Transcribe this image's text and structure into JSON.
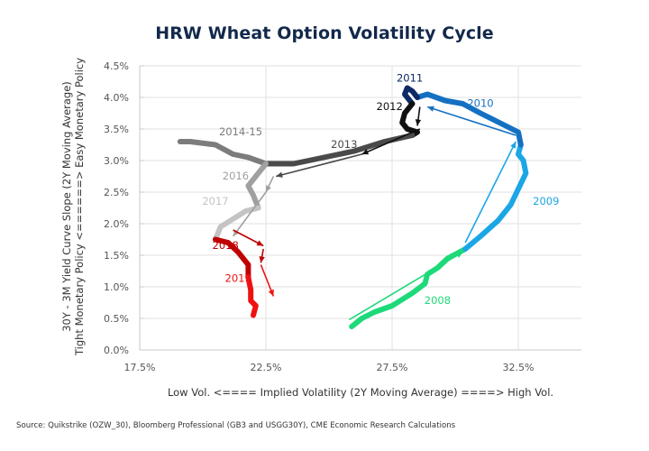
{
  "chart_data": {
    "type": "line",
    "title": "HRW Wheat Option Volatility Cycle",
    "xlabel": "Low Vol. <==== Implied Volatility (2Y Moving Average) ====> High Vol.",
    "ylabel_lines": [
      "30Y - 3M Yield Curve Slope (2Y Moving Average)",
      "Tight Monetary Policy <======> Easy Monetary Policy"
    ],
    "xlim": [
      17.5,
      35.0
    ],
    "ylim": [
      0.0,
      4.5
    ],
    "x_ticks": [
      17.5,
      22.5,
      27.5,
      32.5
    ],
    "x_tick_labels": [
      "17.5%",
      "22.5%",
      "27.5%",
      "32.5%"
    ],
    "y_ticks": [
      0.0,
      0.5,
      1.0,
      1.5,
      2.0,
      2.5,
      3.0,
      3.5,
      4.0,
      4.5
    ],
    "y_tick_labels": [
      "0.0%",
      "0.5%",
      "1.0%",
      "1.5%",
      "2.0%",
      "2.5%",
      "3.0%",
      "3.5%",
      "4.0%",
      "4.5%"
    ],
    "grid": true,
    "series": [
      {
        "name": "2008",
        "color": "#1ed97a",
        "label_at": [
          29.3,
          0.73
        ],
        "points": [
          [
            25.9,
            0.37
          ],
          [
            26.3,
            0.5
          ],
          [
            26.8,
            0.6
          ],
          [
            27.5,
            0.7
          ],
          [
            28.3,
            0.9
          ],
          [
            28.8,
            1.05
          ],
          [
            28.9,
            1.2
          ],
          [
            29.3,
            1.3
          ],
          [
            29.7,
            1.45
          ],
          [
            30.4,
            1.6
          ]
        ]
      },
      {
        "name": "2009",
        "color": "#1ba6e6",
        "label_at": [
          33.6,
          2.3
        ],
        "points": [
          [
            30.4,
            1.6
          ],
          [
            31.0,
            1.8
          ],
          [
            31.7,
            2.05
          ],
          [
            32.2,
            2.3
          ],
          [
            32.5,
            2.55
          ],
          [
            32.8,
            2.8
          ],
          [
            32.7,
            3.0
          ],
          [
            32.5,
            3.1
          ],
          [
            32.6,
            3.25
          ]
        ]
      },
      {
        "name": "2010",
        "color": "#1570c2",
        "label_at": [
          31.0,
          3.85
        ],
        "points": [
          [
            32.6,
            3.25
          ],
          [
            32.5,
            3.45
          ],
          [
            32.0,
            3.55
          ],
          [
            31.0,
            3.75
          ],
          [
            30.3,
            3.9
          ],
          [
            29.6,
            3.95
          ],
          [
            28.9,
            4.05
          ],
          [
            28.5,
            4.0
          ]
        ]
      },
      {
        "name": "2011",
        "color": "#0d2a66",
        "label_at": [
          28.2,
          4.25
        ],
        "points": [
          [
            28.5,
            4.0
          ],
          [
            28.3,
            4.1
          ],
          [
            28.1,
            4.15
          ],
          [
            28.0,
            4.05
          ],
          [
            28.3,
            3.9
          ]
        ]
      },
      {
        "name": "2012",
        "color": "#111111",
        "label_at": [
          27.4,
          3.8
        ],
        "points": [
          [
            28.3,
            3.9
          ],
          [
            28.0,
            3.75
          ],
          [
            27.9,
            3.6
          ],
          [
            28.1,
            3.5
          ],
          [
            28.5,
            3.45
          ],
          [
            28.3,
            3.4
          ]
        ]
      },
      {
        "name": "2013",
        "color": "#4a4a4a",
        "label_at": [
          25.6,
          3.2
        ],
        "points": [
          [
            28.3,
            3.4
          ],
          [
            27.2,
            3.3
          ],
          [
            26.0,
            3.15
          ],
          [
            24.8,
            3.05
          ],
          [
            23.6,
            2.95
          ],
          [
            22.5,
            2.95
          ]
        ]
      },
      {
        "name": "2014-15",
        "color": "#7c7c7c",
        "label_at": [
          21.5,
          3.4
        ],
        "points": [
          [
            22.5,
            2.95
          ],
          [
            21.8,
            3.05
          ],
          [
            21.2,
            3.1
          ],
          [
            20.5,
            3.25
          ],
          [
            19.5,
            3.3
          ],
          [
            19.1,
            3.3
          ]
        ]
      },
      {
        "name": "2016",
        "color": "#a0a0a0",
        "label_at": [
          21.3,
          2.7
        ],
        "points": [
          [
            22.5,
            2.95
          ],
          [
            22.2,
            2.8
          ],
          [
            21.8,
            2.6
          ],
          [
            22.0,
            2.45
          ],
          [
            22.2,
            2.25
          ]
        ]
      },
      {
        "name": "2017",
        "color": "#c4c4c4",
        "label_at": [
          20.5,
          2.3
        ],
        "points": [
          [
            22.2,
            2.25
          ],
          [
            21.7,
            2.2
          ],
          [
            21.1,
            2.05
          ],
          [
            20.7,
            1.95
          ],
          [
            20.5,
            1.75
          ]
        ]
      },
      {
        "name": "2018",
        "color": "#c00000",
        "label_at": [
          20.9,
          1.6
        ],
        "points": [
          [
            20.5,
            1.75
          ],
          [
            21.0,
            1.7
          ],
          [
            21.4,
            1.55
          ],
          [
            21.8,
            1.35
          ],
          [
            21.8,
            1.15
          ]
        ]
      },
      {
        "name": "2019",
        "color": "#ee1111",
        "label_at": [
          21.4,
          1.08
        ],
        "points": [
          [
            21.8,
            1.15
          ],
          [
            21.9,
            0.95
          ],
          [
            21.9,
            0.78
          ],
          [
            22.1,
            0.7
          ],
          [
            22.0,
            0.55
          ]
        ]
      }
    ],
    "arrows": [
      {
        "from": [
          25.8,
          0.48
        ],
        "to": [
          30.3,
          1.55
        ],
        "color": "#1ed97a"
      },
      {
        "from": [
          30.4,
          1.7
        ],
        "to": [
          32.4,
          3.3
        ],
        "color": "#1ba6e6"
      },
      {
        "from": [
          32.4,
          3.4
        ],
        "to": [
          28.9,
          3.85
        ],
        "color": "#1570c2"
      },
      {
        "from": [
          28.6,
          3.85
        ],
        "to": [
          28.5,
          3.55
        ],
        "color": "#111111"
      },
      {
        "from": [
          28.6,
          3.5
        ],
        "to": [
          26.3,
          3.1
        ],
        "color": "#111111"
      },
      {
        "from": [
          26.3,
          3.1
        ],
        "to": [
          22.9,
          2.75
        ],
        "color": "#4a4a4a"
      },
      {
        "from": [
          22.8,
          2.75
        ],
        "to": [
          22.5,
          2.5
        ],
        "color": "#a0a0a0"
      },
      {
        "from": [
          22.5,
          2.5
        ],
        "to": [
          21.2,
          1.8
        ],
        "color": "#a0a0a0"
      },
      {
        "from": [
          21.2,
          1.9
        ],
        "to": [
          22.4,
          1.65
        ],
        "color": "#c00000"
      },
      {
        "from": [
          22.4,
          1.6
        ],
        "to": [
          22.3,
          1.38
        ],
        "color": "#c00000"
      },
      {
        "from": [
          22.3,
          1.35
        ],
        "to": [
          22.8,
          0.85
        ],
        "color": "#ee1111"
      }
    ]
  },
  "source": "Source: Quikstrike (OZW_30), Bloomberg Professional (GB3 and USGG30Y), CME Economic Research Calculations"
}
